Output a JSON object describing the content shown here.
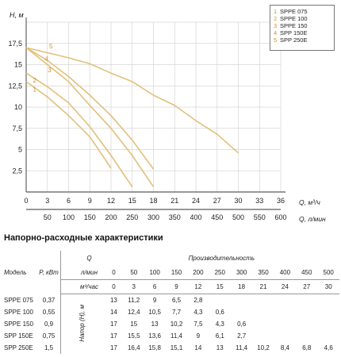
{
  "chart_data": {
    "type": "line",
    "ylabel": "H, м",
    "xlabel": "Q, м³/ч",
    "x2label": "Q, л/мин",
    "xlim": [
      0,
      36
    ],
    "ylim": [
      0,
      20
    ],
    "x_ticks": [
      "0",
      "3",
      "6",
      "9",
      "12",
      "15",
      "18",
      "21",
      "24",
      "27",
      "30",
      "33",
      "36"
    ],
    "x2_ticks": [
      "50",
      "100",
      "150",
      "200",
      "250",
      "300",
      "350",
      "400",
      "450",
      "500",
      "550",
      "600"
    ],
    "y_ticks": [
      "2,5",
      "5",
      "7,5",
      "10",
      "12,5",
      "15",
      "17,5"
    ],
    "grid": true,
    "legend_position": "top-right",
    "series": [
      {
        "name": "SPPE 075",
        "label": "1",
        "x": [
          0,
          3,
          6,
          9,
          12
        ],
        "y": [
          13,
          11.2,
          9,
          6.5,
          2.8
        ]
      },
      {
        "name": "SPPE 100",
        "label": "2",
        "x": [
          0,
          3,
          6,
          9,
          12,
          15
        ],
        "y": [
          14,
          12.4,
          10.5,
          7.7,
          4.3,
          0.6
        ]
      },
      {
        "name": "SPPE 150",
        "label": "3",
        "x": [
          0,
          3,
          6,
          9,
          12,
          15,
          18
        ],
        "y": [
          17,
          15,
          13,
          10.2,
          7.5,
          4.3,
          0.6
        ]
      },
      {
        "name": "SPP 150E",
        "label": "4",
        "x": [
          0,
          3,
          6,
          9,
          12,
          15,
          18
        ],
        "y": [
          17,
          15.5,
          13.6,
          11.4,
          9,
          6.1,
          2.7
        ]
      },
      {
        "name": "SPP 250E",
        "label": "5",
        "x": [
          0,
          3,
          6,
          9,
          12,
          15,
          18,
          21,
          24,
          27,
          30
        ],
        "y": [
          17,
          16.4,
          15.8,
          15.1,
          14,
          13,
          11.4,
          10.2,
          8.4,
          6.8,
          4.6
        ]
      }
    ],
    "curve_color": "#e2c07a",
    "label_color": "#c9952b"
  },
  "section_title": "Напорно-расходные характеристики",
  "table": {
    "model_header": "Модель",
    "power_header": "P, кВт",
    "q_header": "Q",
    "productivity_header": "Производительность",
    "unit_lmin": "л/мин",
    "unit_m3h": "м³/час",
    "head_header": "Напор (H), м",
    "lmin_values": [
      "0",
      "50",
      "100",
      "150",
      "200",
      "250",
      "300",
      "350",
      "400",
      "450",
      "500"
    ],
    "m3h_values": [
      "0",
      "3",
      "6",
      "9",
      "12",
      "15",
      "18",
      "21",
      "24",
      "27",
      "30"
    ],
    "rows": [
      {
        "model": "SPPE 075",
        "power": "0,37",
        "values": [
          "13",
          "11,2",
          "9",
          "6,5",
          "2,8",
          "",
          "",
          "",
          "",
          "",
          ""
        ]
      },
      {
        "model": "SPPE 100",
        "power": "0,55",
        "values": [
          "14",
          "12,4",
          "10,5",
          "7,7",
          "4,3",
          "0,6",
          "",
          "",
          "",
          "",
          ""
        ]
      },
      {
        "model": "SPPE 150",
        "power": "0,9",
        "values": [
          "17",
          "15",
          "13",
          "10,2",
          "7,5",
          "4,3",
          "0,6",
          "",
          "",
          "",
          ""
        ]
      },
      {
        "model": "SPP 150E",
        "power": "0,75",
        "values": [
          "17",
          "15,5",
          "13,6",
          "11,4",
          "9",
          "6,1",
          "2,7",
          "",
          "",
          "",
          ""
        ]
      },
      {
        "model": "SPP 250E",
        "power": "1,5",
        "values": [
          "17",
          "16,4",
          "15,8",
          "15,1",
          "14",
          "13",
          "11,4",
          "10,2",
          "8,4",
          "6,8",
          "4,6"
        ]
      }
    ]
  }
}
